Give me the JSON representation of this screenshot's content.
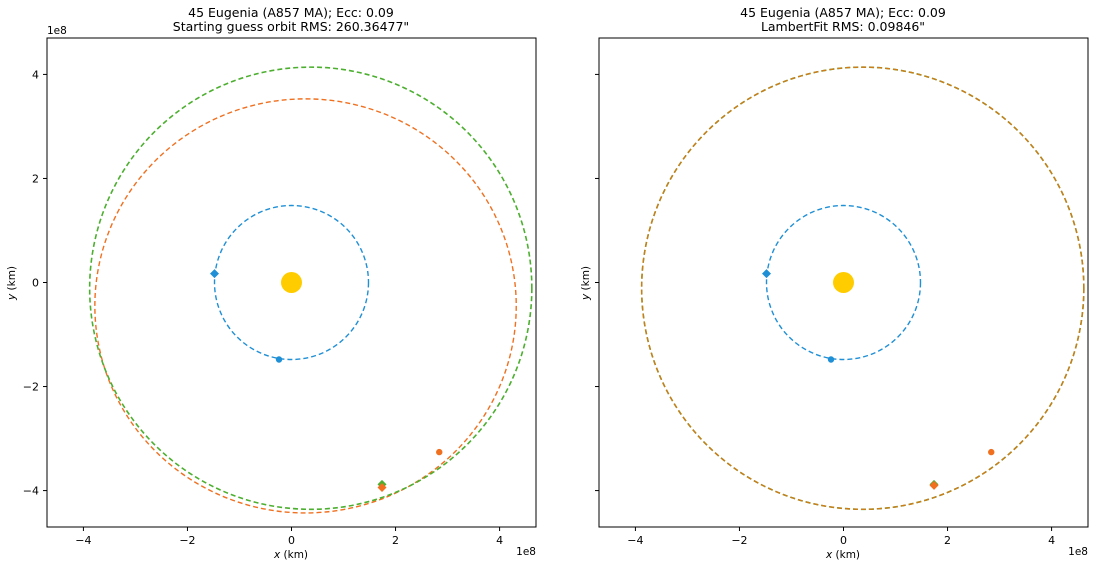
{
  "chart_data": [
    {
      "type": "scatter",
      "title": "45 Eugenia (A857 MA); Ecc: 0.09",
      "subtitle": "Starting guess orbit RMS: 260.36477\"",
      "xlabel": "x (km)",
      "ylabel": "y (km)",
      "x_label_var": "x",
      "y_label_var": "y",
      "label_unit": "(km)",
      "x_offset_text": "1e8",
      "y_offset_text": "1e8",
      "xlim": [
        -4.7,
        4.7
      ],
      "ylim": [
        -4.7,
        4.7
      ],
      "x_ticks": [
        -4,
        -2,
        0,
        2,
        4
      ],
      "y_ticks": [
        -4,
        -2,
        0,
        2,
        4
      ],
      "x_tick_labels": [
        "−4",
        "−2",
        "0",
        "2",
        "4"
      ],
      "y_tick_labels": [
        "−4",
        "−2",
        "0",
        "2",
        "4"
      ],
      "show_y_tick_labels": true,
      "grid": false,
      "sun": {
        "x": 0,
        "y": 0
      },
      "series": [
        {
          "kind": "orbit",
          "color": "#1f8fd6",
          "cx": 0.0,
          "cy": 0.0,
          "a": 1.48,
          "b": 1.48,
          "width": 1.4
        },
        {
          "kind": "orbit",
          "color": "#f07020",
          "cx": 0.27,
          "cy": -0.45,
          "a": 4.05,
          "b": 3.98,
          "width": 1.4
        },
        {
          "kind": "orbit",
          "color": "#4caf2f",
          "cx": 0.37,
          "cy": -0.11,
          "a": 4.25,
          "b": 4.25,
          "width": 1.6
        }
      ],
      "markers": [
        {
          "shape": "diamond",
          "color": "#1f8fd6",
          "x": -1.48,
          "y": 0.17
        },
        {
          "shape": "circle",
          "color": "#1f8fd6",
          "x": -0.24,
          "y": -1.48
        },
        {
          "shape": "circle",
          "color": "#f07020",
          "x": 2.84,
          "y": -3.26
        },
        {
          "shape": "diamond",
          "color": "#4caf2f",
          "x": 1.74,
          "y": -3.88
        },
        {
          "shape": "diamond",
          "color": "#f07020",
          "x": 1.74,
          "y": -3.94
        }
      ]
    },
    {
      "type": "scatter",
      "title": "45 Eugenia (A857 MA); Ecc: 0.09",
      "subtitle": "LambertFit RMS: 0.09846\"",
      "xlabel": "x (km)",
      "ylabel": "y (km)",
      "x_label_var": "x",
      "y_label_var": "y",
      "label_unit": "(km)",
      "x_offset_text": "1e8",
      "y_offset_text": "",
      "xlim": [
        -4.7,
        4.7
      ],
      "ylim": [
        -4.7,
        4.7
      ],
      "x_ticks": [
        -4,
        -2,
        0,
        2,
        4
      ],
      "y_ticks": [
        -4,
        -2,
        0,
        2,
        4
      ],
      "x_tick_labels": [
        "−4",
        "−2",
        "0",
        "2",
        "4"
      ],
      "y_tick_labels": [],
      "show_y_tick_labels": false,
      "grid": false,
      "sun": {
        "x": 0,
        "y": 0
      },
      "series": [
        {
          "kind": "orbit",
          "color": "#1f8fd6",
          "cx": 0.0,
          "cy": 0.0,
          "a": 1.48,
          "b": 1.48,
          "width": 1.4
        },
        {
          "kind": "orbit",
          "color": "#4caf2f",
          "cx": 0.37,
          "cy": -0.11,
          "a": 4.25,
          "b": 4.25,
          "width": 1.6
        },
        {
          "kind": "orbit",
          "color": "#d07a1a",
          "cx": 0.37,
          "cy": -0.11,
          "a": 4.25,
          "b": 4.25,
          "width": 1.4
        }
      ],
      "markers": [
        {
          "shape": "diamond",
          "color": "#1f8fd6",
          "x": -1.48,
          "y": 0.17
        },
        {
          "shape": "circle",
          "color": "#1f8fd6",
          "x": -0.24,
          "y": -1.48
        },
        {
          "shape": "circle",
          "color": "#f07020",
          "x": 2.84,
          "y": -3.26
        },
        {
          "shape": "diamond",
          "color": "#4caf2f",
          "x": 1.74,
          "y": -3.88
        },
        {
          "shape": "diamond",
          "color": "#f07020",
          "x": 1.74,
          "y": -3.9
        }
      ]
    }
  ],
  "colors": {
    "sun": "#ffcc00",
    "frame": "#000000"
  }
}
